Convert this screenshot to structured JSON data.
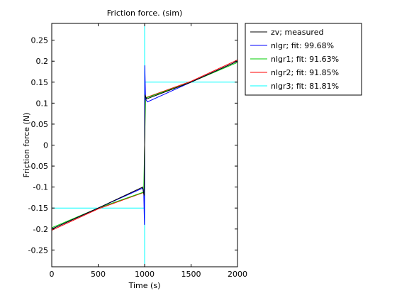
{
  "chart_data": {
    "type": "line",
    "title": "Friction force. (sim)",
    "xlabel": "Time (s)",
    "ylabel": "Friction force (N)",
    "xlim": [
      0,
      2000
    ],
    "ylim": [
      -0.29,
      0.29
    ],
    "xticks": [
      0,
      500,
      1000,
      1500,
      2000
    ],
    "xtick_labels": [
      "0",
      "500",
      "1000",
      "1500",
      "2000"
    ],
    "yticks": [
      -0.25,
      -0.2,
      -0.15,
      -0.1,
      -0.05,
      0,
      0.05,
      0.1,
      0.15,
      0.2,
      0.25
    ],
    "ytick_labels": [
      "-0.25",
      "-0.2",
      "-0.15",
      "-0.1",
      "-0.05",
      "0",
      "0.05",
      "0.1",
      "0.15",
      "0.2",
      "0.25"
    ],
    "grid": false,
    "legend_position": "outside-top-right",
    "series": [
      {
        "name": "zv; measured",
        "color": "#000000",
        "x": [
          0,
          500,
          980,
          985,
          995,
          1000,
          1005,
          1020,
          1500,
          2000
        ],
        "y": [
          -0.2,
          -0.15,
          -0.1,
          -0.11,
          -0.12,
          0.0,
          0.12,
          0.11,
          0.15,
          0.2
        ]
      },
      {
        "name": "nlgr; fit: 99.68%",
        "color": "#0000ff",
        "x": [
          0,
          500,
          975,
          990,
          998,
          1000,
          1002,
          1010,
          1030,
          1500,
          2000
        ],
        "y": [
          -0.2,
          -0.15,
          -0.103,
          -0.108,
          -0.19,
          0.0,
          0.19,
          0.11,
          0.103,
          0.15,
          0.2
        ]
      },
      {
        "name": "nlgr1; fit: 91.63%",
        "color": "#00cc00",
        "x": [
          0,
          500,
          990,
          1010,
          1500,
          2000
        ],
        "y": [
          -0.197,
          -0.15,
          -0.112,
          0.112,
          0.15,
          0.197
        ]
      },
      {
        "name": "nlgr2; fit: 91.85%",
        "color": "#ff0000",
        "x": [
          0,
          500,
          990,
          995,
          998,
          1000,
          1002,
          1005,
          1010,
          1500,
          2000
        ],
        "y": [
          -0.203,
          -0.152,
          -0.113,
          -0.12,
          -0.055,
          0.0,
          0.055,
          0.12,
          0.113,
          0.152,
          0.203
        ]
      },
      {
        "name": "nlgr3; fit: 81.81%",
        "color": "#00ffff",
        "x": [
          0,
          1000,
          1000,
          1000,
          1000,
          2000
        ],
        "y": [
          -0.15,
          -0.15,
          -0.29,
          0.29,
          0.15,
          0.15
        ]
      }
    ]
  }
}
